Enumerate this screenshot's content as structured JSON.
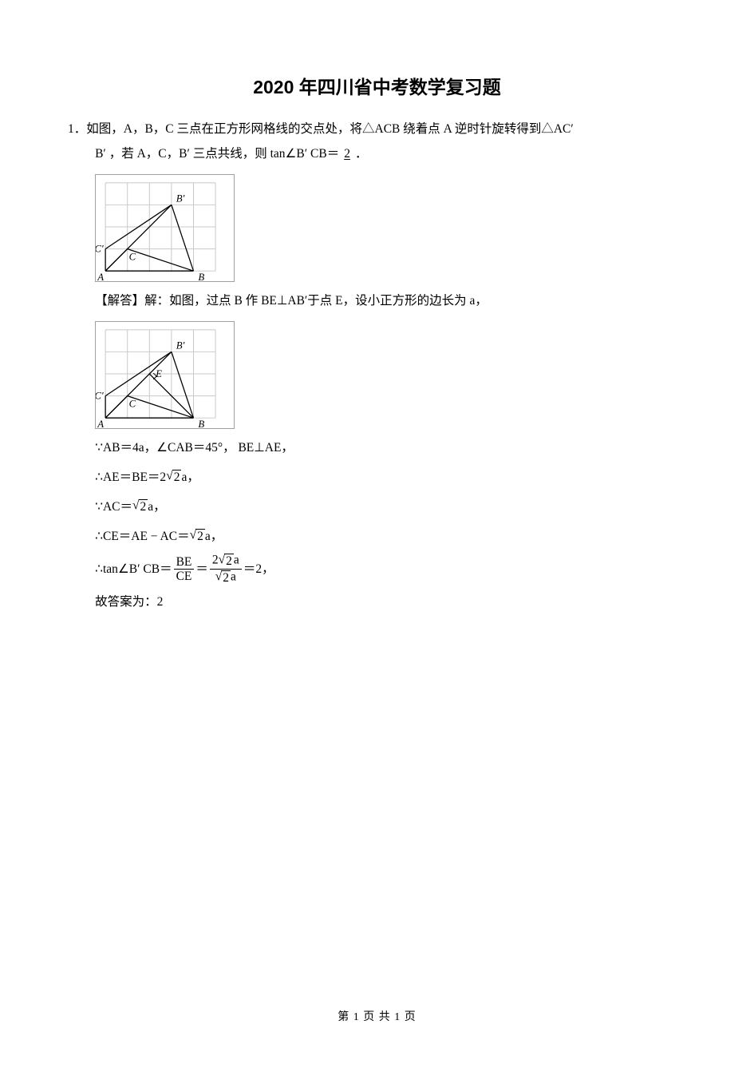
{
  "title": "2020 年四川省中考数学复习题",
  "problem": {
    "number": "1．",
    "line1": "如图，A，B，C 三点在正方形网格线的交点处，将△ACB 绕着点 A 逆时针旋转得到△AC′",
    "line2": "B′ ，若 A，C，B′ 三点共线，则 tan∠B′ CB＝",
    "answer": "2",
    "period": "．"
  },
  "solution": {
    "label": "【解答】",
    "intro": "解：如图，过点 B 作 BE⊥AB′于点 E，设小正方形的边长为 a，",
    "step1_prefix": "∵AB＝4a，∠CAB＝45°， BE⊥AE，",
    "step2": "∴AE＝BE＝2",
    "step2_tail": "a，",
    "step3": "∵AC＝",
    "step3_tail": "a，",
    "step4": "∴CE＝AE − AC＝",
    "step4_tail": "a，",
    "step5_pre": "∴tan∠B′ CB＝",
    "step5_eq": "＝",
    "step5_eq2": "＝2，",
    "final": "故答案为：2"
  },
  "frac1": {
    "num": "BE",
    "den": "CE"
  },
  "frac2_num_coef": "2",
  "frac2_num_tail": "a",
  "frac2_den_tail": "a",
  "sqrt2": "2",
  "footer": "第 1 页 共 1 页",
  "diagram1": {
    "grid_color": "#c8c8c8",
    "border_color": "#888888",
    "line_color": "#000000",
    "bg": "#ffffff",
    "cell": 28,
    "cols": 5,
    "rows": 4,
    "A": [
      0,
      4
    ],
    "B": [
      4,
      4
    ],
    "C": [
      1,
      3
    ],
    "Bp": [
      3,
      1
    ],
    "Cp": [
      0,
      3
    ],
    "labels": {
      "A": "A",
      "B": "B",
      "C": "C",
      "Bp": "B'",
      "Cp": "C'"
    },
    "show_E": false
  },
  "diagram2": {
    "grid_color": "#c8c8c8",
    "border_color": "#888888",
    "line_color": "#000000",
    "bg": "#ffffff",
    "cell": 28,
    "cols": 5,
    "rows": 4,
    "A": [
      0,
      4
    ],
    "B": [
      4,
      4
    ],
    "C": [
      1,
      3
    ],
    "Bp": [
      3,
      1
    ],
    "Cp": [
      0,
      3
    ],
    "E": [
      2,
      2
    ],
    "labels": {
      "A": "A",
      "B": "B",
      "C": "C",
      "Bp": "B'",
      "Cp": "C'",
      "E": "E"
    },
    "show_E": true
  }
}
